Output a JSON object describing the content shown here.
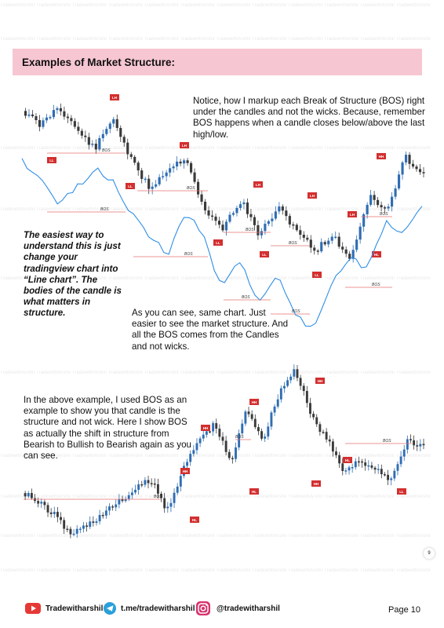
{
  "watermark": "TradewithArshil TradewithArshil TradewithArshil TradewithArshil TradewithArshil TradewithArshil TradewithArshil TradewithArshil TradewithArshil TradewithArshil TradewithArshil TradewithArshil",
  "section_title": "Examples of Market Structure:",
  "note_bos": "Notice, how I markup each Break of Structure (BOS) right under the candles and not the wicks. Because, remember BOS happens when a candle closes below/above the last high/low.",
  "note_line_chart": "The easiest way to understand this is just change your tradingview chart into “Line chart”. The bodies of the candle is what matters in structure.",
  "note_same_chart": "As you can see, same chart. Just easier to see the market structure. And all the BOS comes from the Candles and not wicks.",
  "note_example": "In the above example, I used BOS as an example to show you that candle is the structure and not wick. Here I show BOS as actually the shift in structure from Bearish to Bullish to Bearish again as you can see.",
  "labels": {
    "bos": "BOS",
    "lh": "LH",
    "ll": "LL",
    "hh": "HH",
    "hl": "HL"
  },
  "colors": {
    "banner": "#f7c6d3",
    "bull": "#2f6db3",
    "bear": "#3a3a3a",
    "line": "#2f8ee6",
    "bos_line": "#e57373",
    "label_bg": "#d32f2f"
  },
  "footer": {
    "youtube_icon": "youtube-icon",
    "youtube": "Tradewitharshil",
    "telegram_icon": "telegram-icon",
    "telegram": "t.me/tradewitharshil",
    "instagram_icon": "instagram-icon",
    "instagram": "@tradewitharshil",
    "page": "Page 10"
  },
  "page_dot": "9"
}
